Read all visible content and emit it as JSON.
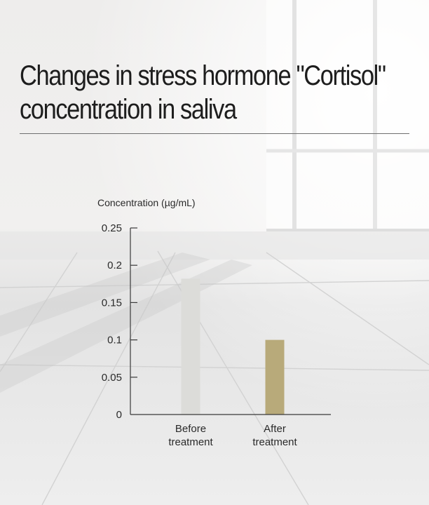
{
  "title_line1": "Changes in stress hormone  \"Cortisol\"",
  "title_line2": "concentration in saliva",
  "chart_data": {
    "type": "bar",
    "ylabel": "Concentration (µg/mL)",
    "categories": [
      [
        "Before",
        "treatment"
      ],
      [
        "After",
        "treatment"
      ]
    ],
    "values": [
      0.182,
      0.1
    ],
    "bar_colors": [
      "#dcdcd9",
      "#b8aa7a"
    ],
    "ylim": [
      0,
      0.25
    ],
    "yticks": [
      "0",
      "0.05",
      "0.1",
      "0.15",
      "0.2",
      "0.25"
    ],
    "ytick_values": [
      0,
      0.05,
      0.1,
      0.15,
      0.2,
      0.25
    ],
    "grid": false
  }
}
